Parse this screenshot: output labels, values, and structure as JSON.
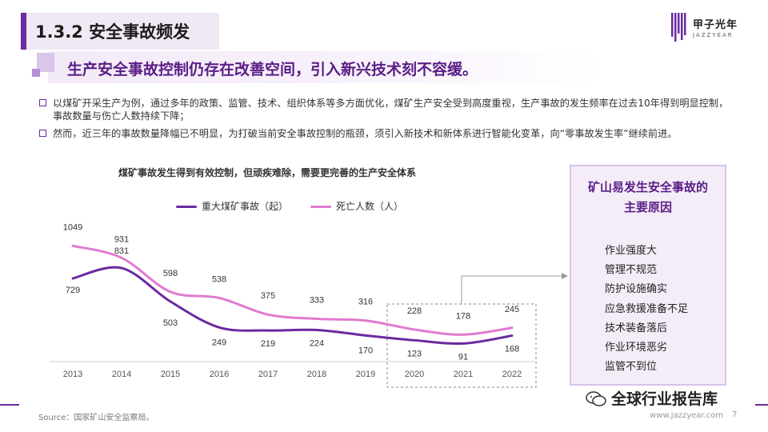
{
  "header": {
    "title": "1.3.2 安全事故频发",
    "logo_cn": "甲子光年",
    "logo_en": "JAZZYEAR"
  },
  "subtitle": "生产安全事故控制仍存在改善空间，引入新兴技术刻不容缓。",
  "bullets": [
    "以煤矿开采生产为例，通过多年的政策、监管、技术、组织体系等多方面优化，煤矿生产安全受到高度重视，生产事故的发生频率在过去10年得到明显控制，事故数量与伤亡人数持续下降；",
    "然而，近三年的事故数量降幅已不明显，为打破当前安全事故控制的瓶颈，须引入新技术和新体系进行智能化变革，向“零事故发生率”继续前进。"
  ],
  "chart_data": {
    "type": "line",
    "title": "煤矿事故发生得到有效控制，但顽疾难除，需要更完善的生产安全体系",
    "categories": [
      "2013",
      "2014",
      "2015",
      "2016",
      "2017",
      "2018",
      "2019",
      "2020",
      "2021",
      "2022"
    ],
    "series": [
      {
        "name": "重大煤矿事故（起）",
        "color": "#6a2aa0",
        "values": [
          729,
          831,
          503,
          249,
          219,
          224,
          170,
          123,
          91,
          168
        ]
      },
      {
        "name": "死亡人数（人）",
        "color": "#e07ad0",
        "values": [
          1049,
          931,
          598,
          538,
          375,
          333,
          316,
          228,
          178,
          245
        ]
      }
    ],
    "highlight_range": [
      "2020",
      "2022"
    ],
    "legend_position": "top",
    "grid": false
  },
  "reasons": {
    "title": "矿山易发生安全事故的主要原因",
    "title_line1": "矿山易发生安全事故的",
    "title_line2": "主要原因",
    "items": [
      "作业强度大",
      "管理不规范",
      "防护设施确实",
      "应急救援准备不足",
      "技术装备落后",
      "作业环境恶劣",
      "监管不到位"
    ]
  },
  "footer": {
    "source": "Source：国家矿山安全监察局。",
    "site": "www.jazzyear.com",
    "page": "7",
    "wechat_name": "全球行业报告库"
  }
}
